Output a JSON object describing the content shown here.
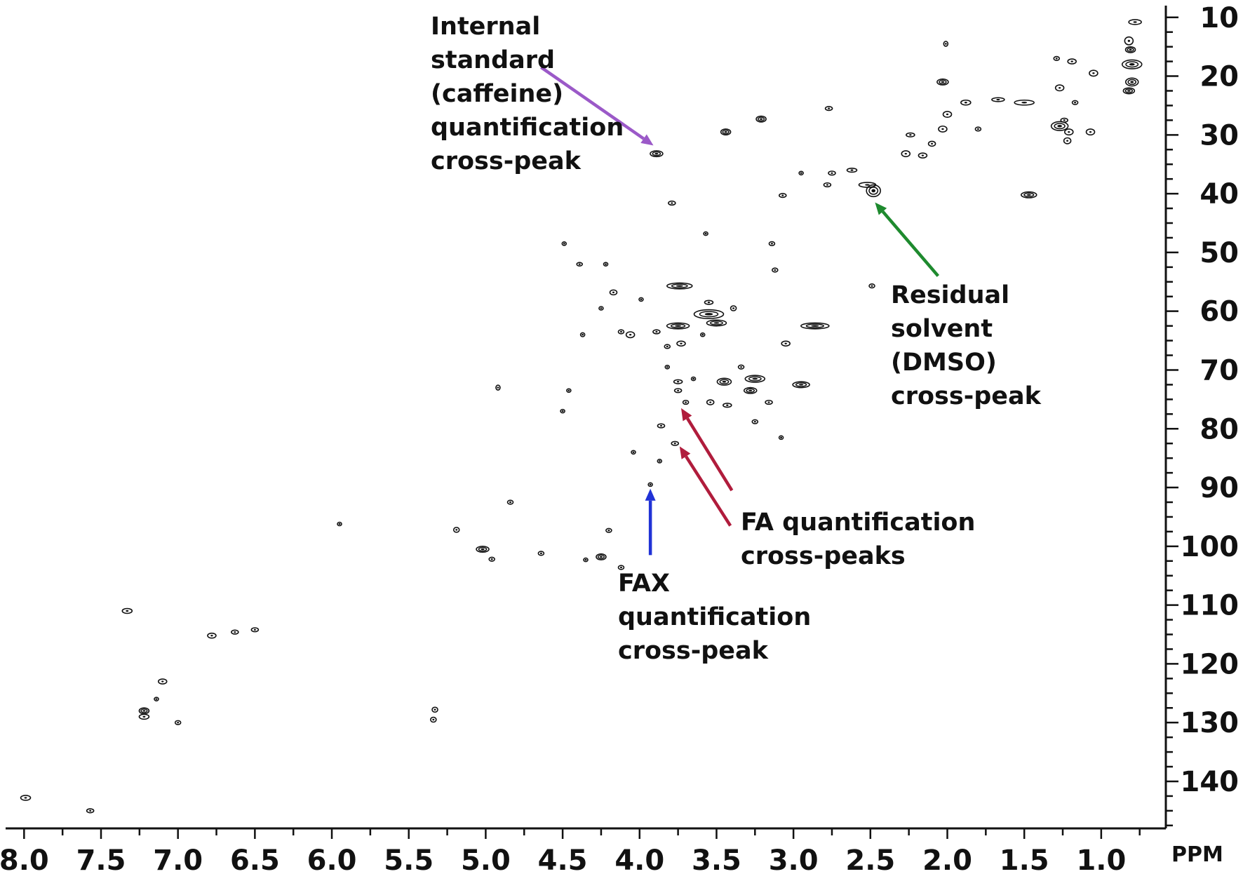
{
  "chart_data": {
    "type": "scatter",
    "title": "",
    "xlabel": "PPM",
    "ylabel": "",
    "x_axis": {
      "label": "PPM",
      "range": [
        8.12,
        0.58
      ],
      "ticks": [
        "8.0",
        "7.5",
        "7.0",
        "6.5",
        "6.0",
        "5.5",
        "5.0",
        "4.5",
        "4.0",
        "3.5",
        "3.0",
        "2.5",
        "2.0",
        "1.5",
        "1.0"
      ],
      "tick_values": [
        8.0,
        7.5,
        7.0,
        6.5,
        6.0,
        5.5,
        5.0,
        4.5,
        4.0,
        3.5,
        3.0,
        2.5,
        2.0,
        1.5,
        1.0
      ],
      "minor_step": 0.25
    },
    "y_axis": {
      "range": [
        8,
        148
      ],
      "ticks": [
        "10",
        "20",
        "30",
        "40",
        "50",
        "60",
        "70",
        "80",
        "90",
        "100",
        "110",
        "120",
        "130",
        "140"
      ],
      "tick_values": [
        10,
        20,
        30,
        40,
        50,
        60,
        70,
        80,
        90,
        100,
        110,
        120,
        130,
        140
      ],
      "minor_step": 2.5,
      "position": "right"
    },
    "grid": false,
    "contour_color": "#111111",
    "peaks": [
      [
        0.78,
        10.8,
        0.9,
        0.5
      ],
      [
        0.82,
        14.0,
        0.6,
        0.8
      ],
      [
        0.81,
        15.5,
        0.7,
        0.6
      ],
      [
        0.8,
        18.0,
        1.4,
        0.9
      ],
      [
        0.8,
        21.0,
        0.9,
        0.8
      ],
      [
        0.82,
        22.5,
        0.8,
        0.6
      ],
      [
        1.05,
        19.5,
        0.6,
        0.6
      ],
      [
        1.19,
        17.5,
        0.6,
        0.5
      ],
      [
        1.29,
        17.0,
        0.4,
        0.4
      ],
      [
        1.27,
        22.0,
        0.6,
        0.6
      ],
      [
        1.24,
        27.5,
        0.5,
        0.4
      ],
      [
        1.27,
        28.5,
        1.2,
        0.9
      ],
      [
        1.21,
        29.5,
        0.6,
        0.6
      ],
      [
        1.07,
        29.5,
        0.6,
        0.6
      ],
      [
        1.22,
        31.0,
        0.5,
        0.6
      ],
      [
        1.17,
        24.5,
        0.4,
        0.4
      ],
      [
        1.5,
        24.5,
        1.4,
        0.5
      ],
      [
        1.67,
        24.0,
        0.9,
        0.4
      ],
      [
        1.47,
        40.2,
        1.1,
        0.6
      ],
      [
        2.01,
        14.5,
        0.3,
        0.5
      ],
      [
        2.03,
        21.0,
        0.8,
        0.6
      ],
      [
        2.0,
        26.5,
        0.6,
        0.6
      ],
      [
        2.03,
        29.0,
        0.6,
        0.6
      ],
      [
        1.88,
        24.5,
        0.7,
        0.5
      ],
      [
        1.8,
        29.0,
        0.4,
        0.4
      ],
      [
        2.1,
        31.5,
        0.5,
        0.5
      ],
      [
        2.16,
        33.5,
        0.6,
        0.5
      ],
      [
        2.27,
        33.2,
        0.6,
        0.6
      ],
      [
        2.24,
        30.0,
        0.6,
        0.4
      ],
      [
        2.48,
        39.5,
        1.0,
        1.2
      ],
      [
        2.52,
        38.5,
        1.2,
        0.5
      ],
      [
        2.62,
        36.0,
        0.7,
        0.4
      ],
      [
        2.75,
        36.5,
        0.5,
        0.4
      ],
      [
        2.77,
        25.5,
        0.5,
        0.4
      ],
      [
        2.78,
        38.5,
        0.5,
        0.4
      ],
      [
        2.95,
        36.5,
        0.3,
        0.3
      ],
      [
        3.07,
        40.3,
        0.5,
        0.4
      ],
      [
        3.21,
        27.3,
        0.7,
        0.6
      ],
      [
        3.44,
        29.5,
        0.7,
        0.6
      ],
      [
        3.89,
        33.2,
        0.9,
        0.6
      ],
      [
        3.79,
        41.6,
        0.5,
        0.4
      ],
      [
        3.57,
        46.8,
        0.2,
        0.3
      ],
      [
        3.14,
        48.5,
        0.4,
        0.4
      ],
      [
        3.12,
        53.0,
        0.4,
        0.4
      ],
      [
        2.49,
        55.7,
        0.4,
        0.4
      ],
      [
        4.49,
        48.5,
        0.3,
        0.3
      ],
      [
        4.39,
        52.0,
        0.4,
        0.3
      ],
      [
        4.22,
        52.0,
        0.3,
        0.3
      ],
      [
        3.74,
        55.7,
        1.8,
        0.6
      ],
      [
        4.17,
        56.8,
        0.5,
        0.5
      ],
      [
        3.99,
        58.0,
        0.3,
        0.3
      ],
      [
        4.25,
        59.5,
        0.3,
        0.3
      ],
      [
        3.39,
        59.5,
        0.4,
        0.5
      ],
      [
        3.55,
        58.5,
        0.6,
        0.4
      ],
      [
        3.55,
        60.5,
        2.1,
        0.9
      ],
      [
        3.75,
        62.5,
        1.6,
        0.6
      ],
      [
        3.5,
        62.0,
        1.4,
        0.6
      ],
      [
        2.86,
        62.5,
        2.0,
        0.6
      ],
      [
        4.06,
        64.0,
        0.6,
        0.6
      ],
      [
        4.12,
        63.5,
        0.4,
        0.4
      ],
      [
        3.89,
        63.5,
        0.5,
        0.4
      ],
      [
        4.37,
        64.0,
        0.3,
        0.4
      ],
      [
        3.73,
        65.5,
        0.6,
        0.5
      ],
      [
        3.59,
        64.0,
        0.3,
        0.3
      ],
      [
        3.82,
        66.0,
        0.4,
        0.4
      ],
      [
        3.05,
        65.5,
        0.6,
        0.5
      ],
      [
        4.92,
        73.0,
        0.3,
        0.5
      ],
      [
        4.46,
        73.5,
        0.3,
        0.3
      ],
      [
        4.5,
        77.0,
        0.2,
        0.2
      ],
      [
        3.75,
        72.0,
        0.6,
        0.4
      ],
      [
        3.75,
        73.5,
        0.5,
        0.4
      ],
      [
        3.82,
        69.5,
        0.3,
        0.3
      ],
      [
        3.65,
        71.5,
        0.3,
        0.3
      ],
      [
        3.45,
        72.0,
        1.0,
        0.7
      ],
      [
        3.25,
        71.5,
        1.4,
        0.7
      ],
      [
        3.28,
        73.5,
        0.9,
        0.6
      ],
      [
        2.95,
        72.5,
        1.2,
        0.6
      ],
      [
        3.16,
        75.5,
        0.5,
        0.4
      ],
      [
        3.54,
        75.5,
        0.5,
        0.5
      ],
      [
        3.43,
        76.0,
        0.6,
        0.4
      ],
      [
        3.7,
        75.5,
        0.4,
        0.4
      ],
      [
        3.34,
        69.5,
        0.4,
        0.4
      ],
      [
        3.25,
        78.8,
        0.4,
        0.4
      ],
      [
        3.86,
        79.5,
        0.5,
        0.4
      ],
      [
        3.77,
        82.5,
        0.5,
        0.4
      ],
      [
        3.08,
        81.5,
        0.2,
        0.3
      ],
      [
        4.04,
        84.0,
        0.2,
        0.3
      ],
      [
        3.87,
        85.5,
        0.2,
        0.3
      ],
      [
        3.93,
        89.5,
        0.2,
        0.3
      ],
      [
        4.84,
        92.5,
        0.4,
        0.4
      ],
      [
        5.19,
        97.2,
        0.4,
        0.5
      ],
      [
        5.02,
        100.5,
        0.9,
        0.6
      ],
      [
        4.96,
        102.2,
        0.4,
        0.4
      ],
      [
        4.64,
        101.2,
        0.4,
        0.4
      ],
      [
        4.2,
        97.3,
        0.4,
        0.4
      ],
      [
        4.25,
        101.8,
        0.7,
        0.6
      ],
      [
        4.12,
        103.6,
        0.4,
        0.4
      ],
      [
        4.35,
        102.3,
        0.2,
        0.2
      ],
      [
        5.33,
        127.8,
        0.4,
        0.5
      ],
      [
        5.34,
        129.5,
        0.4,
        0.5
      ],
      [
        7.33,
        111.0,
        0.7,
        0.5
      ],
      [
        7.22,
        128.0,
        0.7,
        0.6
      ],
      [
        7.22,
        129.0,
        0.7,
        0.5
      ],
      [
        7.14,
        126.0,
        0.2,
        0.2
      ],
      [
        7.1,
        123.0,
        0.6,
        0.5
      ],
      [
        7.0,
        130.0,
        0.4,
        0.4
      ],
      [
        6.78,
        115.2,
        0.6,
        0.5
      ],
      [
        6.63,
        114.6,
        0.5,
        0.4
      ],
      [
        6.5,
        114.2,
        0.5,
        0.4
      ],
      [
        7.99,
        142.8,
        0.7,
        0.5
      ],
      [
        7.57,
        145.0,
        0.5,
        0.4
      ],
      [
        5.95,
        96.2,
        0.2,
        0.2
      ]
    ],
    "annotations": [
      {
        "lines": [
          "Internal",
          "standard",
          "(caffeine)",
          "quantification",
          "cross-peak"
        ],
        "color": "#9b59c8",
        "target": [
          3.91,
          31.8
        ],
        "tail": [
          4.64,
          18.5
        ]
      },
      {
        "lines": [
          "Residual",
          "solvent",
          "(DMSO)",
          "cross-peak"
        ],
        "color": "#1e8a2e",
        "target": [
          2.47,
          41.5
        ],
        "tail": [
          2.06,
          54.0
        ]
      },
      {
        "lines": [
          "FA quantification",
          "cross-peaks"
        ],
        "color": "#b01c3c",
        "target": [
          3.73,
          76.5
        ],
        "tail": [
          3.4,
          90.5
        ]
      },
      {
        "lines": [],
        "color": "#b01c3c",
        "target": [
          3.74,
          83.0
        ],
        "tail": [
          3.41,
          96.5
        ]
      },
      {
        "lines": [
          "FAX",
          "quantification",
          "cross-peak"
        ],
        "color": "#2032d6",
        "target": [
          3.93,
          90.2
        ],
        "tail": [
          3.93,
          101.5
        ]
      }
    ]
  }
}
